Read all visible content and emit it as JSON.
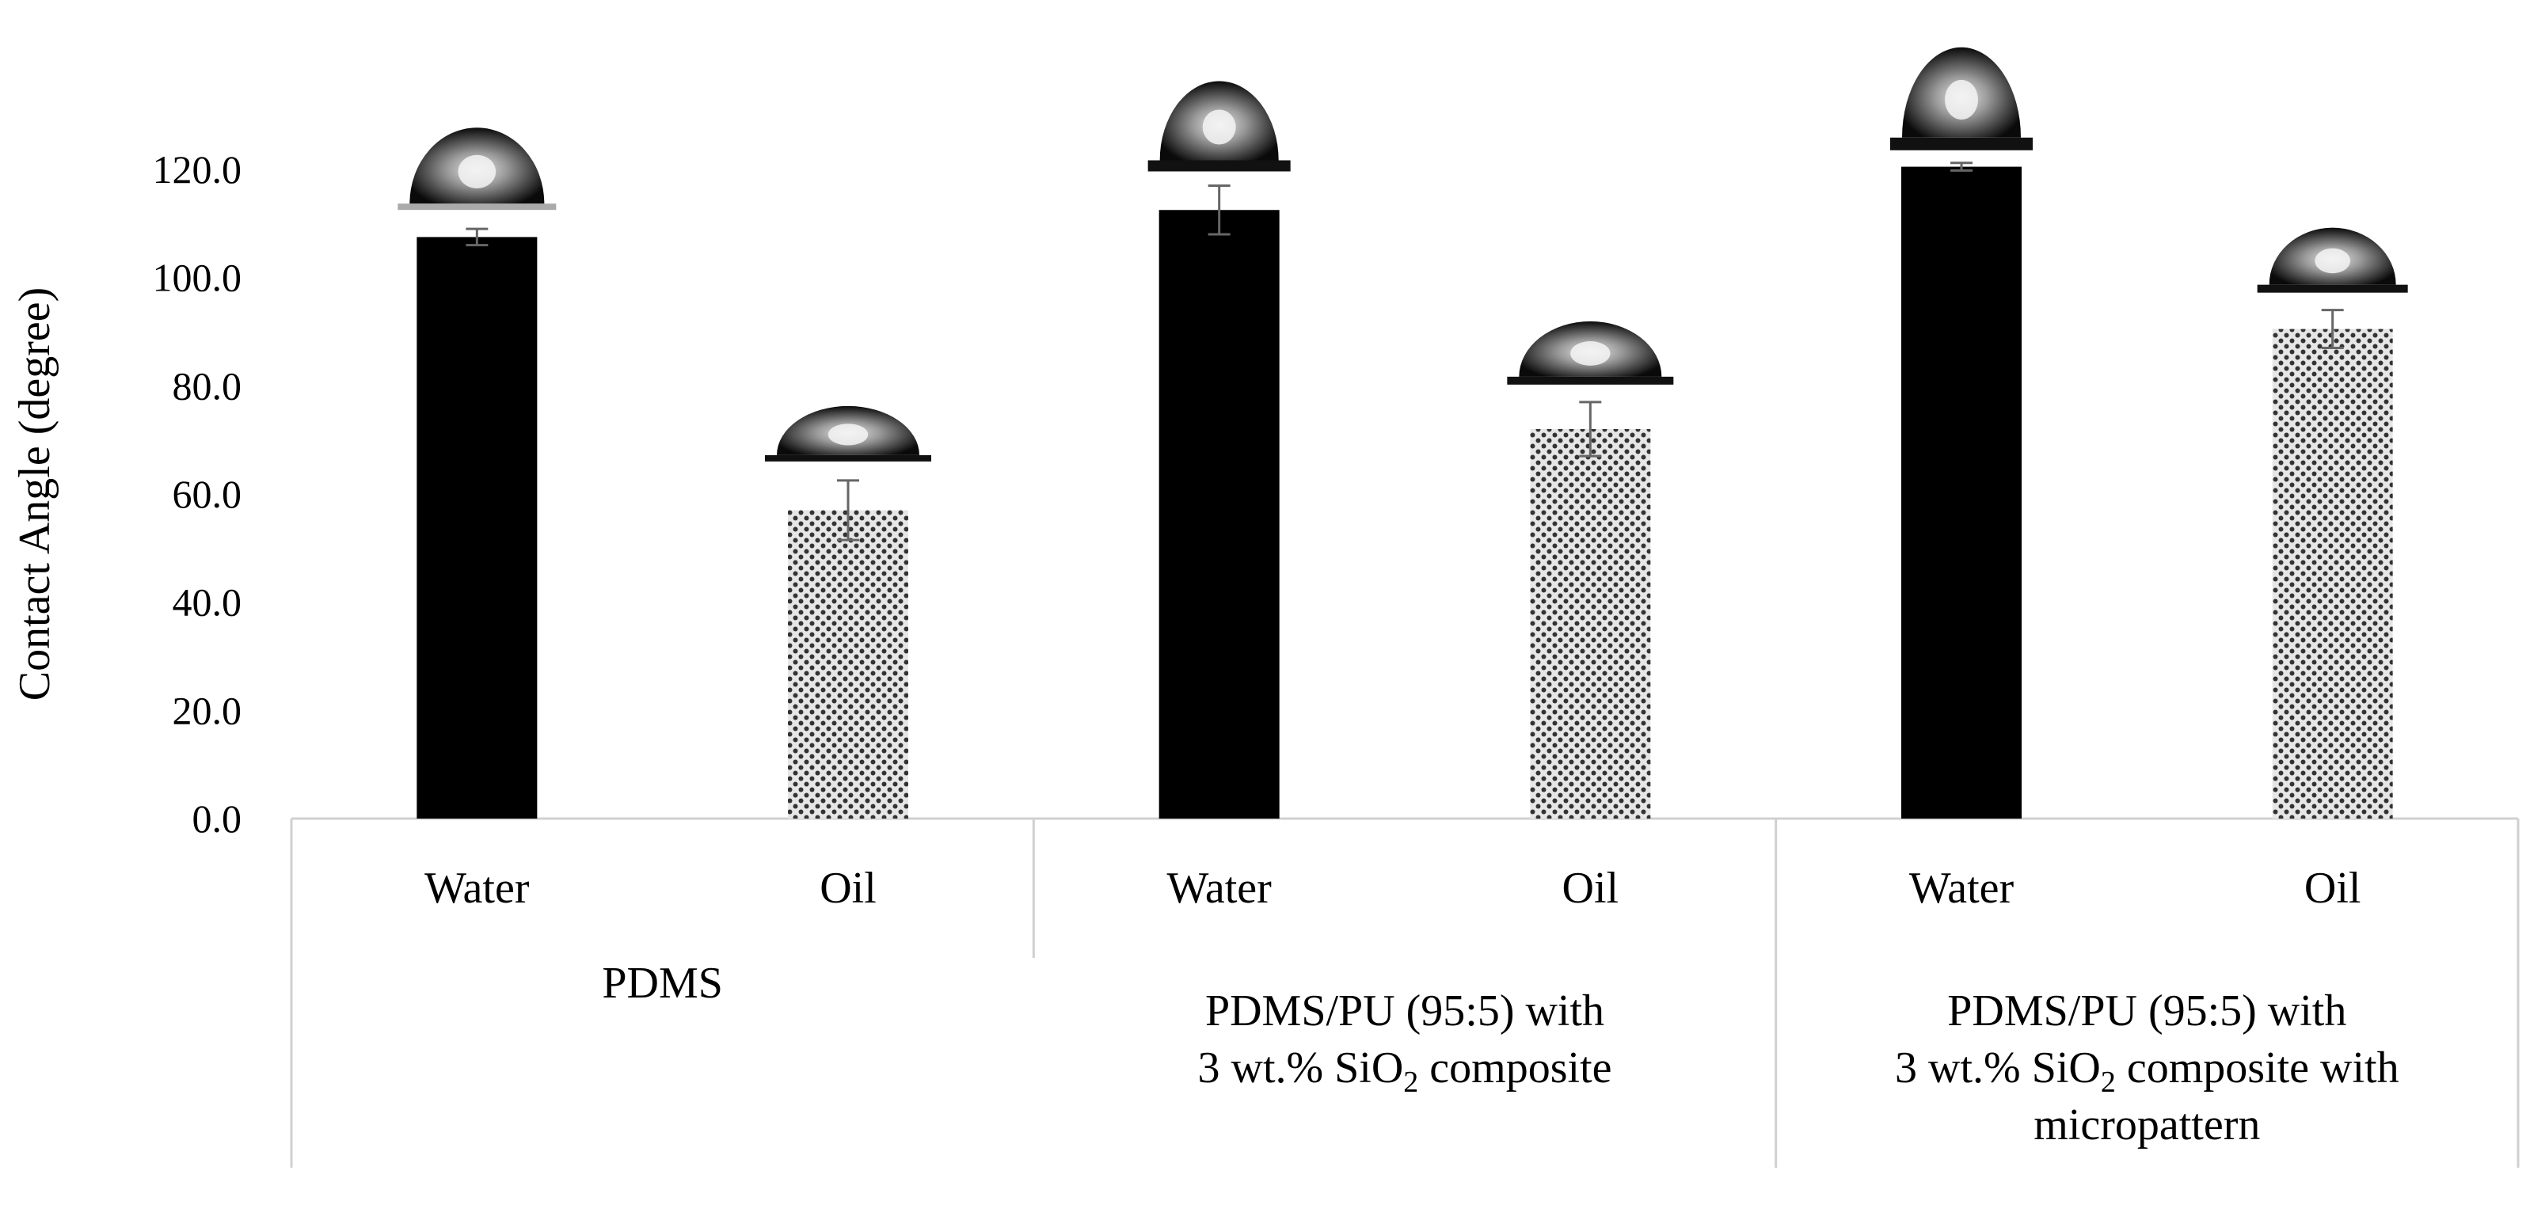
{
  "chart_data": {
    "type": "bar",
    "ylabel": "Contact Angle (degree)",
    "ylim": [
      0,
      120
    ],
    "yticks": [
      "0.0",
      "20.0",
      "40.0",
      "60.0",
      "80.0",
      "100.0",
      "120.0"
    ],
    "groups": [
      {
        "label_lines": [
          "PDMS"
        ],
        "bars": [
          {
            "label": "Water",
            "value": 107.5,
            "error": 1.5,
            "fill": "#000000",
            "pattern": "solid"
          },
          {
            "label": "Oil",
            "value": 57.0,
            "error": 5.5,
            "fill": "#bdbdbd",
            "pattern": "dots"
          }
        ]
      },
      {
        "label_lines": [
          "PDMS/PU (95:5) with",
          "3 wt.% SiO|2| composite"
        ],
        "bars": [
          {
            "label": "Water",
            "value": 112.5,
            "error": 4.5,
            "fill": "#000000",
            "pattern": "solid"
          },
          {
            "label": "Oil",
            "value": 72.0,
            "error": 5.0,
            "fill": "#bdbdbd",
            "pattern": "dots"
          }
        ]
      },
      {
        "label_lines": [
          "PDMS/PU (95:5) with",
          "3 wt.% SiO|2| composite with",
          "micropattern"
        ],
        "bars": [
          {
            "label": "Water",
            "value": 120.5,
            "error": 0.7,
            "fill": "#000000",
            "pattern": "solid"
          },
          {
            "label": "Oil",
            "value": 90.5,
            "error": 3.5,
            "fill": "#bdbdbd",
            "pattern": "dots"
          }
        ]
      }
    ],
    "grid": false,
    "legend": "none"
  }
}
